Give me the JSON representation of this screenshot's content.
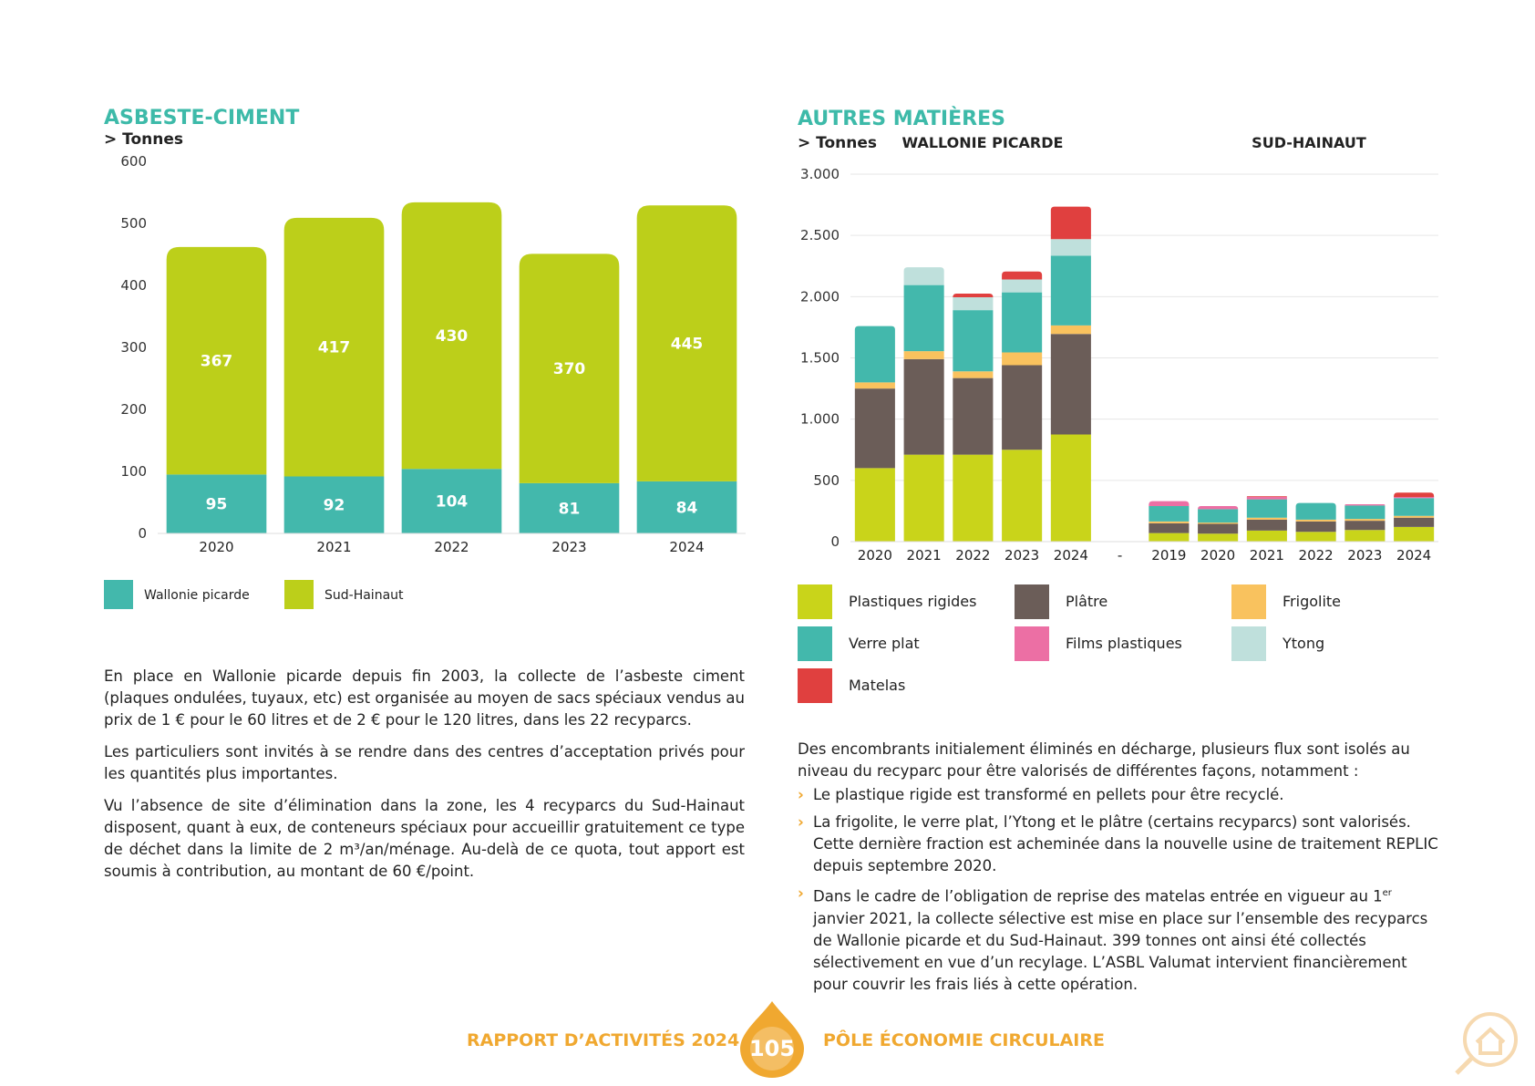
{
  "chart_data": [
    {
      "type": "bar",
      "stacked": true,
      "title": "ASBESTE-CIMENT",
      "y_label": "> Tonnes",
      "categories": [
        "2020",
        "2021",
        "2022",
        "2023",
        "2024"
      ],
      "series": [
        {
          "name": "Wallonie picarde",
          "color": "#43b8ac",
          "values": [
            95,
            92,
            104,
            81,
            84
          ]
        },
        {
          "name": "Sud-Hainaut",
          "color": "#bccf1a",
          "values": [
            367,
            417,
            430,
            370,
            445
          ]
        }
      ],
      "ylim": [
        0,
        600
      ],
      "yticks": [
        0,
        100,
        200,
        300,
        400,
        500,
        600
      ],
      "grid": false,
      "data_labels": true
    },
    {
      "type": "bar",
      "stacked": true,
      "title": "AUTRES MATIÈRES",
      "y_label": "> Tonnes",
      "group_labels": [
        "WALLONIE PICARDE",
        "SUD-HAINAUT"
      ],
      "categories": [
        "2020",
        "2021",
        "2022",
        "2023",
        "2024",
        "-",
        "2019",
        "2020",
        "2021",
        "2022",
        "2023",
        "2024"
      ],
      "series": [
        {
          "name": "Plastiques rigides",
          "color": "#c9d41a",
          "values": [
            600,
            710,
            710,
            750,
            875,
            null,
            70,
            65,
            90,
            80,
            95,
            120
          ]
        },
        {
          "name": "Plâtre",
          "color": "#6b5d58",
          "values": [
            650,
            780,
            625,
            690,
            820,
            null,
            80,
            80,
            90,
            85,
            75,
            75
          ]
        },
        {
          "name": "Frigolite",
          "color": "#f9c25e",
          "values": [
            50,
            65,
            55,
            105,
            70,
            null,
            15,
            10,
            15,
            15,
            15,
            15
          ]
        },
        {
          "name": "Verre plat",
          "color": "#43b8ac",
          "values": [
            460,
            540,
            500,
            490,
            570,
            null,
            125,
            110,
            150,
            135,
            110,
            145
          ]
        },
        {
          "name": "Films plastiques",
          "color": "#ec6fa4",
          "values": [
            0,
            0,
            0,
            0,
            0,
            null,
            40,
            25,
            20,
            0,
            10,
            10
          ]
        },
        {
          "name": "Ytong",
          "color": "#bfe0dc",
          "values": [
            0,
            145,
            105,
            105,
            135,
            null,
            0,
            0,
            0,
            0,
            0,
            0
          ]
        },
        {
          "name": "Matelas",
          "color": "#e0403f",
          "values": [
            0,
            0,
            30,
            65,
            265,
            null,
            0,
            0,
            5,
            0,
            0,
            35
          ]
        }
      ],
      "ylim": [
        0,
        3000
      ],
      "yticks": [
        0,
        500,
        {
          "value": 1000,
          "label": "1.000"
        },
        {
          "value": 1500,
          "label": "1.500"
        },
        {
          "value": 2000,
          "label": "2.000"
        },
        {
          "value": 2500,
          "label": "2.500"
        },
        {
          "value": 3000,
          "label": "3.000"
        }
      ],
      "grid": true,
      "data_labels": false
    }
  ],
  "left_text": [
    "En place en Wallonie picarde depuis fin 2003, la collecte de l’asbeste ciment (plaques ondulées, tuyaux, etc) est organisée au moyen de sacs spéciaux vendus au prix de 1 € pour le 60 litres et de 2 € pour le 120 litres, dans les 22 recyparcs.",
    "Les particuliers sont invités à se rendre dans des centres d’acceptation privés pour les quantités plus importantes.",
    "Vu l’absence de site d’élimination dans la zone, les 4 recyparcs du Sud-Hainaut disposent, quant à eux, de conteneurs spéciaux pour accueillir gratuitement ce type de déchet dans la limite de 2 m³/an/ménage. Au-delà de ce quota, tout apport est soumis à contribution, au montant de 60 €/point."
  ],
  "right_text": {
    "intro": "Des encombrants initialement éliminés en décharge, plusieurs flux sont isolés au niveau du recyparc pour être valorisés de différentes façons, notamment :",
    "bullets": [
      [
        "Le plastique rigide est transformé en pellets pour être recyclé."
      ],
      [
        "La frigolite, le verre plat, l’Ytong et le plâtre (certains recyparcs) sont valorisés. Cette dernière fraction est acheminée dans la nouvelle usine de traitement REPLIC depuis septembre 2020."
      ],
      [
        "Dans le cadre de l’obligation de reprise des matelas entrée en vigueur au 1",
        "er",
        " janvier 2021, la collecte sélective est mise en place sur l’ensemble des recyparcs de Wallonie picarde et du Sud-Hainaut. 399 tonnes ont ainsi été collectés sélectivement en vue d’un recylage. L’ASBL Valumat intervient financièrement pour couvrir les frais liés à cette opération."
      ]
    ]
  },
  "footer": {
    "left": "RAPPORT D’ACTIVITÉS 2024",
    "page": "105",
    "right": "PÔLE ÉCONOMIE CIRCULAIRE"
  }
}
